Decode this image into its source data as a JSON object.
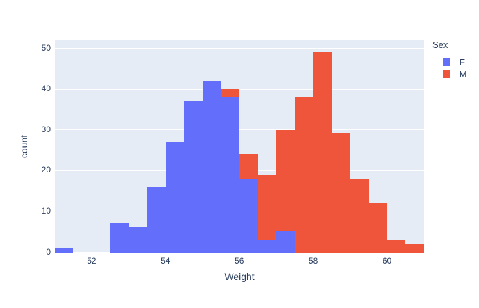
{
  "figure": {
    "colors": {
      "background": "#FFFFFF",
      "plot_background": "#E5ECF6",
      "gridline": "#FFFFFF",
      "text": "#2A3F5F"
    }
  },
  "chart_data": {
    "type": "bar",
    "subtype": "overlaid-histogram",
    "title": "",
    "xlabel": "Weight",
    "ylabel": "count",
    "bin_width": 0.5,
    "xlim": [
      51,
      61.01
    ],
    "ylim": [
      0,
      52.1
    ],
    "x_ticks": [
      52,
      54,
      56,
      58,
      60
    ],
    "y_ticks": [
      0,
      10,
      20,
      30,
      40,
      50
    ],
    "grid": "horizontal-only",
    "legend": {
      "title": "Sex",
      "position": "top-right"
    },
    "series": [
      {
        "name": "F",
        "color": "#636EFA",
        "bins": [
          {
            "x0": 51.0,
            "count": 1
          },
          {
            "x0": 52.5,
            "count": 7
          },
          {
            "x0": 53.0,
            "count": 6
          },
          {
            "x0": 53.5,
            "count": 16
          },
          {
            "x0": 54.0,
            "count": 27
          },
          {
            "x0": 54.5,
            "count": 37
          },
          {
            "x0": 55.0,
            "count": 42
          },
          {
            "x0": 55.5,
            "count": 38
          },
          {
            "x0": 56.0,
            "count": 18
          },
          {
            "x0": 56.5,
            "count": 3
          },
          {
            "x0": 57.0,
            "count": 5
          }
        ]
      },
      {
        "name": "M",
        "color": "#EF553B",
        "bins": [
          {
            "x0": 55.5,
            "count": 40
          },
          {
            "x0": 56.0,
            "count": 24
          },
          {
            "x0": 56.5,
            "count": 19
          },
          {
            "x0": 57.0,
            "count": 30
          },
          {
            "x0": 57.5,
            "count": 38
          },
          {
            "x0": 58.0,
            "count": 49
          },
          {
            "x0": 58.5,
            "count": 29
          },
          {
            "x0": 59.0,
            "count": 18
          },
          {
            "x0": 59.5,
            "count": 12
          },
          {
            "x0": 60.0,
            "count": 3
          },
          {
            "x0": 60.5,
            "count": 2
          }
        ]
      }
    ]
  }
}
